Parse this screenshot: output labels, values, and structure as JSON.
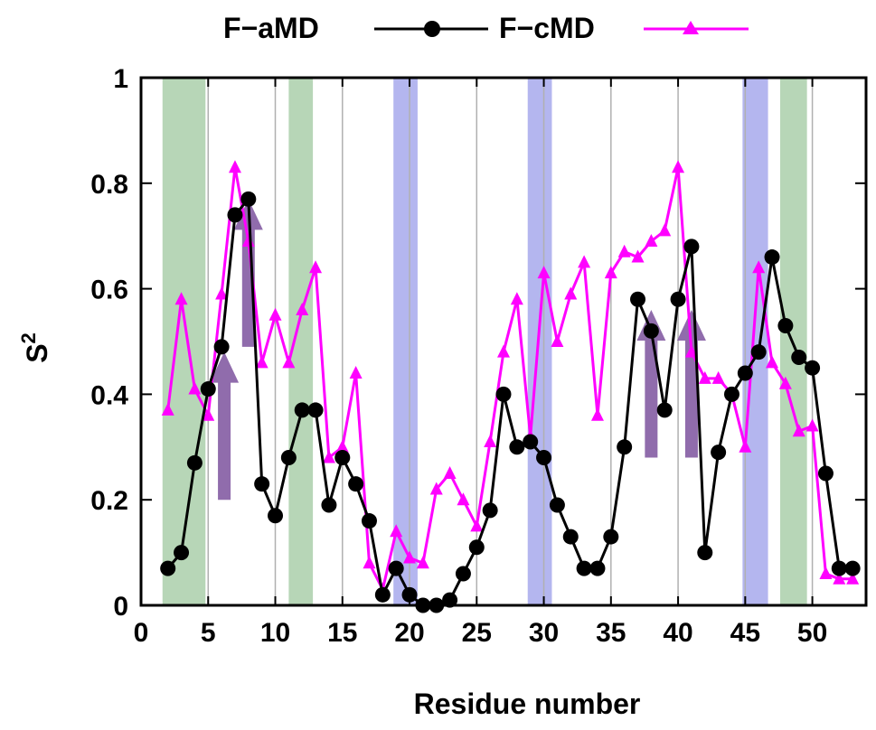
{
  "chart_data": {
    "type": "line",
    "title": "",
    "xlabel": "Residue number",
    "ylabel": "S",
    "ylabel_superscript": "2",
    "xlim": [
      0,
      54
    ],
    "ylim": [
      0,
      1
    ],
    "xticks": [
      "0",
      "5",
      "10",
      "15",
      "20",
      "25",
      "30",
      "35",
      "40",
      "45",
      "50"
    ],
    "yticks": [
      "0",
      "0.2",
      "0.4",
      "0.6",
      "0.8",
      "1"
    ],
    "grid": "vertical",
    "legend": "top",
    "series": [
      {
        "name": "F−aMD",
        "color": "#000000",
        "marker": "circle",
        "x": [
          2,
          3,
          4,
          5,
          6,
          7,
          8,
          9,
          10,
          11,
          12,
          13,
          14,
          15,
          16,
          17,
          18,
          19,
          20,
          21,
          22,
          23,
          24,
          25,
          26,
          27,
          28,
          29,
          30,
          31,
          32,
          33,
          34,
          35,
          36,
          37,
          38,
          39,
          40,
          41,
          42,
          43,
          44,
          45,
          46,
          47,
          48,
          49,
          50,
          51,
          52,
          53
        ],
        "y": [
          0.07,
          0.1,
          0.27,
          0.41,
          0.49,
          0.74,
          0.77,
          0.23,
          0.17,
          0.28,
          0.37,
          0.37,
          0.19,
          0.28,
          0.23,
          0.16,
          0.02,
          0.07,
          0.02,
          0.0,
          0.0,
          0.01,
          0.06,
          0.11,
          0.18,
          0.4,
          0.3,
          0.31,
          0.28,
          0.19,
          0.13,
          0.07,
          0.07,
          0.13,
          0.3,
          0.58,
          0.52,
          0.37,
          0.58,
          0.68,
          0.1,
          0.29,
          0.4,
          0.44,
          0.48,
          0.66,
          0.53,
          0.47,
          0.45,
          0.25,
          0.07,
          0.07
        ]
      },
      {
        "name": "F−cMD",
        "color": "#ff00ff",
        "marker": "triangle",
        "x": [
          2,
          3,
          4,
          5,
          6,
          7,
          8,
          9,
          10,
          11,
          12,
          13,
          14,
          15,
          16,
          17,
          18,
          19,
          20,
          21,
          22,
          23,
          24,
          25,
          26,
          27,
          28,
          29,
          30,
          31,
          32,
          33,
          34,
          35,
          36,
          37,
          38,
          39,
          40,
          41,
          42,
          43,
          44,
          45,
          46,
          47,
          48,
          49,
          50,
          51,
          52,
          53
        ],
        "y": [
          0.37,
          0.58,
          0.41,
          0.36,
          0.59,
          0.83,
          0.69,
          0.46,
          0.55,
          0.46,
          0.56,
          0.64,
          0.28,
          0.3,
          0.44,
          0.08,
          0.03,
          0.14,
          0.09,
          0.08,
          0.22,
          0.25,
          0.2,
          0.15,
          0.31,
          0.48,
          0.58,
          0.32,
          0.63,
          0.5,
          0.59,
          0.65,
          0.36,
          0.63,
          0.67,
          0.66,
          0.69,
          0.71,
          0.83,
          0.48,
          0.43,
          0.43,
          0.4,
          0.3,
          0.64,
          0.46,
          0.42,
          0.33,
          0.34,
          0.06,
          0.05,
          0.05
        ]
      }
    ],
    "bands": [
      {
        "x0": 1.6,
        "x1": 4.8,
        "color": "#b7d6b7"
      },
      {
        "x0": 11.0,
        "x1": 12.8,
        "color": "#b7d6b7"
      },
      {
        "x0": 18.8,
        "x1": 20.6,
        "color": "#b4b6ef"
      },
      {
        "x0": 28.8,
        "x1": 30.6,
        "color": "#b4b6ef"
      },
      {
        "x0": 44.8,
        "x1": 46.7,
        "color": "#b4b6ef"
      },
      {
        "x0": 47.6,
        "x1": 49.6,
        "color": "#b7d6b7"
      }
    ],
    "arrows": [
      {
        "x": 6.2,
        "y0": 0.2,
        "y1": 0.48,
        "color": "#8a64a8"
      },
      {
        "x": 8.0,
        "y0": 0.49,
        "y1": 0.77,
        "color": "#8a64a8"
      },
      {
        "x": 38.0,
        "y0": 0.28,
        "y1": 0.56,
        "color": "#8a64a8"
      },
      {
        "x": 41.0,
        "y0": 0.28,
        "y1": 0.56,
        "color": "#8a64a8"
      }
    ]
  }
}
